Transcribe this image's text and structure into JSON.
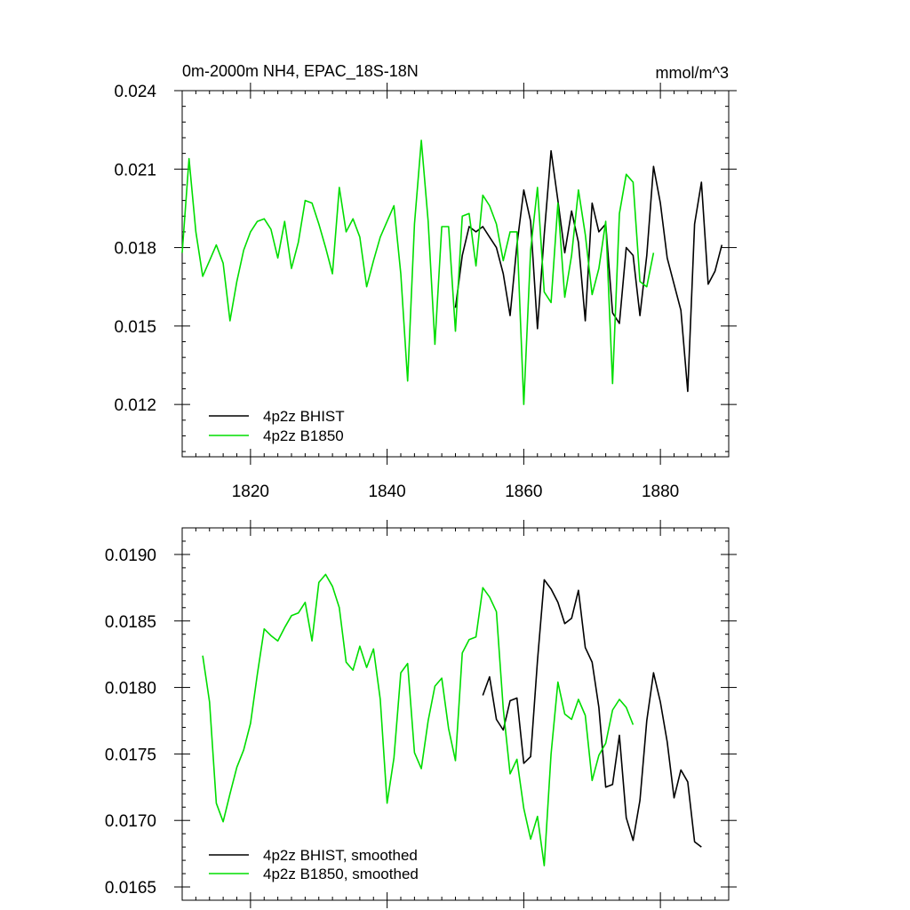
{
  "colors": {
    "bhist": "#000000",
    "b1850": "#00dd00"
  },
  "chart_data": [
    {
      "type": "line",
      "title": "0m-2000m NH4, EPAC_18S-18N",
      "units_label": "mmol/m^3",
      "xlabel": "",
      "ylabel": "",
      "xlim": [
        1810,
        1890
      ],
      "ylim": [
        0.01,
        0.024
      ],
      "xticks": [
        1820,
        1840,
        1860,
        1880
      ],
      "xtick_labels": [
        "1820",
        "1840",
        "1860",
        "1880"
      ],
      "yticks": [
        0.012,
        0.015,
        0.018,
        0.021,
        0.024
      ],
      "ytick_labels": [
        "0.012",
        "0.015",
        "0.018",
        "0.021",
        "0.024"
      ],
      "legend_position": "bottom-left",
      "series": [
        {
          "name": "4p2z BHIST",
          "color": "#000000",
          "x": [
            1850,
            1851,
            1852,
            1853,
            1854,
            1855,
            1856,
            1857,
            1858,
            1859,
            1860,
            1861,
            1862,
            1863,
            1864,
            1865,
            1866,
            1867,
            1868,
            1869,
            1870,
            1871,
            1872,
            1873,
            1874,
            1875,
            1876,
            1877,
            1878,
            1879,
            1880,
            1881,
            1882,
            1883,
            1884,
            1885,
            1886,
            1887,
            1888,
            1889
          ],
          "values": [
            0.0157,
            0.0177,
            0.0188,
            0.0186,
            0.0188,
            0.0184,
            0.018,
            0.017,
            0.0154,
            0.0181,
            0.0202,
            0.019,
            0.0149,
            0.0185,
            0.0217,
            0.0198,
            0.0178,
            0.0194,
            0.0182,
            0.0152,
            0.0197,
            0.0186,
            0.0189,
            0.0155,
            0.0151,
            0.018,
            0.0177,
            0.0154,
            0.0177,
            0.0211,
            0.0197,
            0.0176,
            0.0166,
            0.0156,
            0.0125,
            0.0189,
            0.0205,
            0.0166,
            0.0171,
            0.0181
          ]
        },
        {
          "name": "4p2z B1850",
          "color": "#00dd00",
          "x": [
            1810,
            1811,
            1812,
            1813,
            1814,
            1815,
            1816,
            1817,
            1818,
            1819,
            1820,
            1821,
            1822,
            1823,
            1824,
            1825,
            1826,
            1827,
            1828,
            1829,
            1830,
            1831,
            1832,
            1833,
            1834,
            1835,
            1836,
            1837,
            1838,
            1839,
            1840,
            1841,
            1842,
            1843,
            1844,
            1845,
            1846,
            1847,
            1848,
            1849,
            1850,
            1851,
            1852,
            1853,
            1854,
            1855,
            1856,
            1857,
            1858,
            1859,
            1860,
            1861,
            1862,
            1863,
            1864,
            1865,
            1866,
            1867,
            1868,
            1869,
            1870,
            1871,
            1872,
            1873,
            1874,
            1875,
            1876,
            1877,
            1878,
            1879
          ],
          "values": [
            0.0178,
            0.0214,
            0.0186,
            0.0169,
            0.0175,
            0.0181,
            0.0174,
            0.0152,
            0.0167,
            0.0179,
            0.0186,
            0.019,
            0.0191,
            0.0187,
            0.0176,
            0.019,
            0.0172,
            0.0182,
            0.0198,
            0.0197,
            0.0189,
            0.018,
            0.017,
            0.0203,
            0.0186,
            0.0191,
            0.0184,
            0.0165,
            0.0175,
            0.0184,
            0.019,
            0.0196,
            0.017,
            0.0129,
            0.0189,
            0.0221,
            0.019,
            0.0143,
            0.0188,
            0.0188,
            0.0148,
            0.0192,
            0.0193,
            0.0173,
            0.02,
            0.0196,
            0.0189,
            0.0175,
            0.0186,
            0.0186,
            0.012,
            0.0179,
            0.0203,
            0.0163,
            0.0159,
            0.0197,
            0.0161,
            0.0177,
            0.0202,
            0.0185,
            0.0162,
            0.0172,
            0.019,
            0.0128,
            0.0193,
            0.0208,
            0.0205,
            0.0167,
            0.0165,
            0.0178
          ]
        }
      ]
    },
    {
      "type": "line",
      "title": "",
      "xlabel": "",
      "ylabel": "",
      "xlim": [
        1810,
        1890
      ],
      "ylim": [
        0.0164,
        0.0192
      ],
      "xticks": [
        1820,
        1840,
        1860,
        1880
      ],
      "yticks": [
        0.0165,
        0.017,
        0.0175,
        0.018,
        0.0185,
        0.019
      ],
      "ytick_labels": [
        "0.0165",
        "0.0170",
        "0.0175",
        "0.0180",
        "0.0185",
        "0.0190"
      ],
      "legend_position": "bottom-left",
      "series": [
        {
          "name": "4p2z BHIST, smoothed",
          "color": "#000000",
          "x": [
            1854,
            1855,
            1856,
            1857,
            1858,
            1859,
            1860,
            1861,
            1862,
            1863,
            1864,
            1865,
            1866,
            1867,
            1868,
            1869,
            1870,
            1871,
            1872,
            1873,
            1874,
            1875,
            1876,
            1877,
            1878,
            1879,
            1880,
            1881,
            1882,
            1883,
            1884,
            1885,
            1886
          ],
          "values": [
            0.01794,
            0.01808,
            0.01776,
            0.01768,
            0.0179,
            0.01792,
            0.01743,
            0.01748,
            0.0182,
            0.01881,
            0.01874,
            0.01864,
            0.01848,
            0.01852,
            0.01873,
            0.0183,
            0.01819,
            0.01785,
            0.01725,
            0.01727,
            0.01764,
            0.01702,
            0.01685,
            0.01715,
            0.01775,
            0.01811,
            0.01789,
            0.01759,
            0.01717,
            0.01738,
            0.01729,
            0.01684,
            0.0168
          ]
        },
        {
          "name": "4p2z B1850, smoothed",
          "color": "#00dd00",
          "x": [
            1813,
            1814,
            1815,
            1816,
            1817,
            1818,
            1819,
            1820,
            1821,
            1822,
            1823,
            1824,
            1825,
            1826,
            1827,
            1828,
            1829,
            1830,
            1831,
            1832,
            1833,
            1834,
            1835,
            1836,
            1837,
            1838,
            1839,
            1840,
            1841,
            1842,
            1843,
            1844,
            1845,
            1846,
            1847,
            1848,
            1849,
            1850,
            1851,
            1852,
            1853,
            1854,
            1855,
            1856,
            1857,
            1858,
            1859,
            1860,
            1861,
            1862,
            1863,
            1864,
            1865,
            1866,
            1867,
            1868,
            1869,
            1870,
            1871,
            1872,
            1873,
            1874,
            1875,
            1876
          ],
          "values": [
            0.01824,
            0.01789,
            0.01713,
            0.01699,
            0.0172,
            0.0174,
            0.01753,
            0.01773,
            0.0181,
            0.01844,
            0.01839,
            0.01835,
            0.01845,
            0.01854,
            0.01856,
            0.01864,
            0.01835,
            0.01879,
            0.01885,
            0.01876,
            0.0186,
            0.01819,
            0.01813,
            0.01831,
            0.01815,
            0.01829,
            0.01791,
            0.01713,
            0.01747,
            0.01811,
            0.01818,
            0.01751,
            0.01739,
            0.01775,
            0.01801,
            0.01807,
            0.01769,
            0.01745,
            0.01826,
            0.01836,
            0.01838,
            0.01875,
            0.01868,
            0.01857,
            0.01784,
            0.01735,
            0.01746,
            0.01709,
            0.01686,
            0.01703,
            0.01666,
            0.0175,
            0.01804,
            0.0178,
            0.01776,
            0.01791,
            0.01779,
            0.0173,
            0.01749,
            0.01758,
            0.01783,
            0.01791,
            0.01785,
            0.01772
          ]
        }
      ]
    }
  ]
}
